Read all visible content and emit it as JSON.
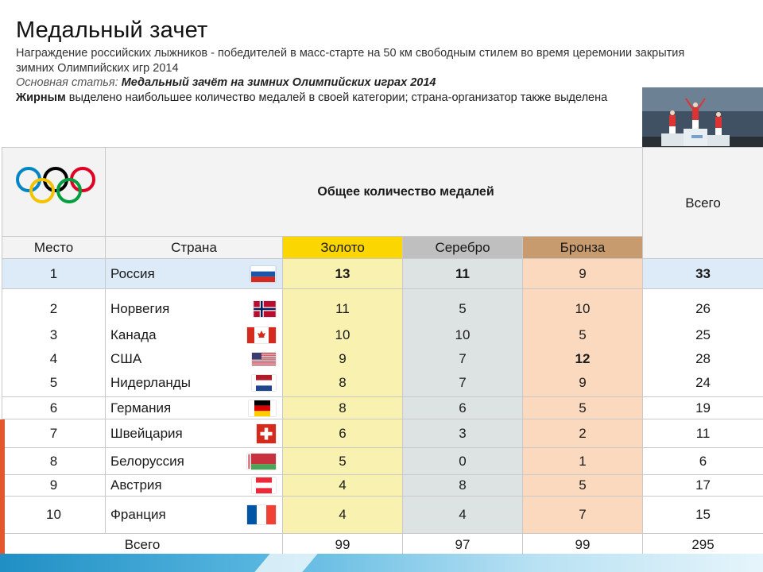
{
  "page": {
    "title": "Медальный зачет",
    "subtitle": "Награждение российских лыжников - победителей в масс-старте на 50 км свободным стилем во время церемонии закрытия зимних Олимпийских игр 2014",
    "main_prefix": "Основная статья:",
    "main_link": "Медальный зачёт на зимних Олимпийских играх 2014",
    "bold_word": "Жирным",
    "bold_rest": " выделено наибольшее количество медалей в своей категории; страна-организатор также выделена"
  },
  "table": {
    "col_place": "Место",
    "col_country": "Страна",
    "col_total_medals": "Общее количество медалей",
    "col_gold": "Золото",
    "col_silver": "Серебро",
    "col_bronze": "Бронза",
    "col_total": "Всего",
    "rows": [
      {
        "place": "1",
        "country": "Россия",
        "gold": "13",
        "silver": "11",
        "bronze": "9",
        "total": "33"
      },
      {
        "place": "2",
        "country": "Норвегия",
        "gold": "11",
        "silver": "5",
        "bronze": "10",
        "total": "26"
      },
      {
        "place": "3",
        "country": "Канада",
        "gold": "10",
        "silver": "10",
        "bronze": "5",
        "total": "25"
      },
      {
        "place": "4",
        "country": "США",
        "gold": "9",
        "silver": "7",
        "bronze": "12",
        "total": "28"
      },
      {
        "place": "5",
        "country": "Нидерланды",
        "gold": "8",
        "silver": "7",
        "bronze": "9",
        "total": "24"
      },
      {
        "place": "6",
        "country": "Германия",
        "gold": "8",
        "silver": "6",
        "bronze": "5",
        "total": "19"
      },
      {
        "place": "7",
        "country": "Швейцария",
        "gold": "6",
        "silver": "3",
        "bronze": "2",
        "total": "11"
      },
      {
        "place": "8",
        "country": "Белоруссия",
        "gold": "5",
        "silver": "0",
        "bronze": "1",
        "total": "6"
      },
      {
        "place": "9",
        "country": "Австрия",
        "gold": "4",
        "silver": "8",
        "bronze": "5",
        "total": "17"
      },
      {
        "place": "10",
        "country": "Франция",
        "gold": "4",
        "silver": "4",
        "bronze": "7",
        "total": "15"
      }
    ],
    "totals": {
      "label": "Всего",
      "gold": "99",
      "silver": "97",
      "bronze": "99",
      "total": "295"
    }
  },
  "colors": {
    "gold_header": "#fbd600",
    "silver_header": "#bfbfbf",
    "bronze_header": "#c89b6e",
    "host_row": "#ddeaf8"
  },
  "icons": [
    "olympic-rings-icon",
    "flag-russia-icon",
    "flag-norway-icon",
    "flag-canada-icon",
    "flag-usa-icon",
    "flag-netherlands-icon",
    "flag-germany-icon",
    "flag-switzerland-icon",
    "flag-belarus-icon",
    "flag-austria-icon",
    "flag-france-icon"
  ]
}
